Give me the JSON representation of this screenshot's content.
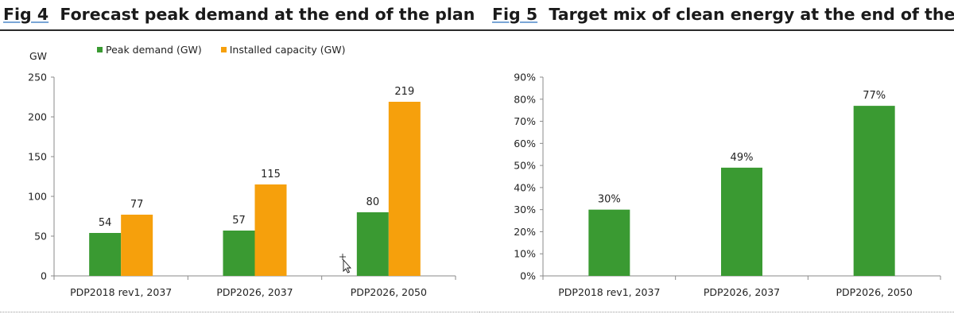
{
  "fig4": {
    "fig_no": "Fig 4",
    "title": "Forecast peak demand at the end of the plan"
  },
  "fig5": {
    "fig_no": "Fig 5",
    "title": "Target mix of clean energy at the end of the plan"
  },
  "chart_data": [
    {
      "type": "bar",
      "title": "Forecast peak demand at the end of the plan",
      "ylabel": "GW",
      "categories": [
        "PDP2018 rev1, 2037",
        "PDP2026, 2037",
        "PDP2026, 2050"
      ],
      "series": [
        {
          "name": "Peak demand (GW)",
          "values": [
            54,
            57,
            80
          ],
          "color": "#3a9a32"
        },
        {
          "name": "Installed capacity (GW)",
          "values": [
            77,
            115,
            219
          ],
          "color": "#f6a00c"
        }
      ],
      "data_labels": [
        "54",
        "57",
        "80",
        "77",
        "115",
        "219"
      ],
      "ylim": [
        0,
        250
      ],
      "yticks": [
        0,
        50,
        100,
        150,
        200,
        250
      ],
      "ytick_labels": [
        "0",
        "50",
        "100",
        "150",
        "200",
        "250"
      ],
      "grid": false,
      "legend": "top"
    },
    {
      "type": "bar",
      "title": "Target mix of clean energy at the end of the plan",
      "categories": [
        "PDP2018 rev1, 2037",
        "PDP2026, 2037",
        "PDP2026, 2050"
      ],
      "series": [
        {
          "values": [
            30,
            49,
            77
          ],
          "color": "#3a9a32"
        }
      ],
      "data_labels": [
        "30%",
        "49%",
        "77%"
      ],
      "ylim": [
        0,
        90
      ],
      "yticks": [
        0,
        10,
        20,
        30,
        40,
        50,
        60,
        70,
        80,
        90
      ],
      "ytick_labels": [
        "0%",
        "10%",
        "20%",
        "30%",
        "40%",
        "50%",
        "60%",
        "70%",
        "80%",
        "90%"
      ],
      "grid": false,
      "legend": "none"
    }
  ]
}
